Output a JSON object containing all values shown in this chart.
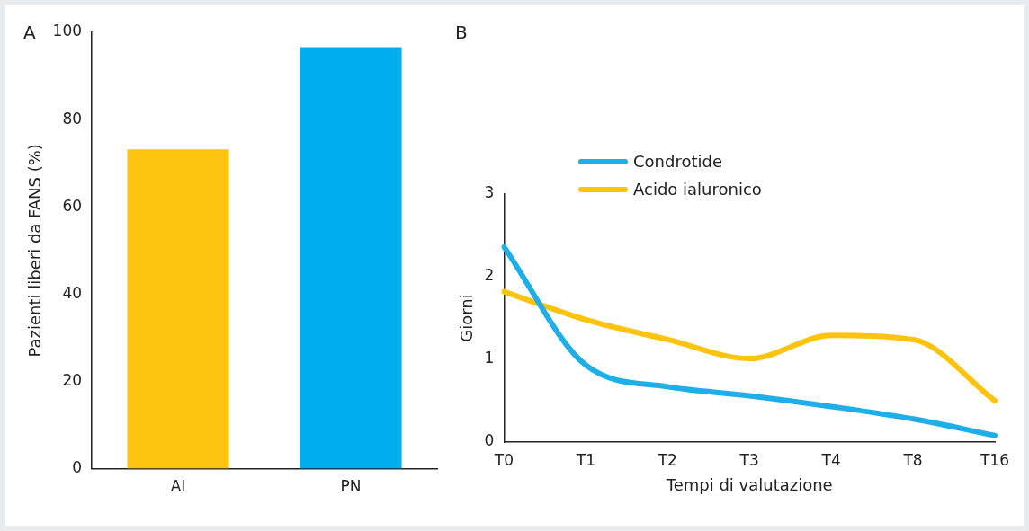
{
  "chart_data": [
    {
      "type": "bar",
      "ylabel": "Pazienti liberi da FANS (%)",
      "categories": [
        "AI",
        "PN"
      ],
      "values": [
        73.2,
        96.6
      ],
      "colors": [
        "#fcc30f",
        "#00adee"
      ],
      "ylim": [
        0,
        100
      ],
      "yticks": [
        0,
        20,
        40,
        60,
        80,
        100
      ],
      "grid": false,
      "legend": false,
      "annotations": [
        "A"
      ]
    },
    {
      "type": "line",
      "xlabel": "Tempi di valutazione",
      "ylabel": "Giorni",
      "categories": [
        "T0",
        "T1",
        "T2",
        "T3",
        "T4",
        "T8",
        "T16"
      ],
      "series": [
        {
          "name": "Condrotide",
          "color": "#1eaee8",
          "values": [
            2.36,
            0.93,
            0.67,
            0.56,
            0.43,
            0.28,
            0.08
          ]
        },
        {
          "name": "Acido ialuronico",
          "color": "#fcc30f",
          "values": [
            1.82,
            1.48,
            1.24,
            1.01,
            1.29,
            1.24,
            0.5
          ]
        }
      ],
      "ylim": [
        0,
        3
      ],
      "yticks": [
        0,
        1,
        2,
        3
      ],
      "grid": false,
      "legend": "top left",
      "marker": "none",
      "line_style": "solid",
      "annotations": [
        "B"
      ]
    }
  ]
}
